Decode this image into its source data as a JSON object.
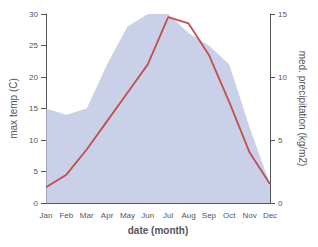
{
  "chart_data": {
    "type": "line",
    "categories": [
      "Jan",
      "Feb",
      "Mar",
      "Apr",
      "May",
      "Jun",
      "Jul",
      "Aug",
      "Sep",
      "Oct",
      "Nov",
      "Dec"
    ],
    "series": [
      {
        "type": "area",
        "axis": "y2",
        "color": "#b8c0e0",
        "values": [
          7.5,
          7.0,
          7.5,
          11.0,
          14.0,
          15.0,
          15.0,
          13.5,
          12.5,
          11.0,
          6.0,
          1.5
        ]
      },
      {
        "type": "line",
        "axis": "y",
        "color": "#c0504d",
        "values": [
          2.5,
          4.5,
          8.5,
          13.0,
          17.5,
          22.0,
          29.5,
          28.5,
          23.5,
          16.0,
          8.0,
          3.0
        ]
      }
    ],
    "xlabel": "date (month)",
    "ylabel": "max temp (C)",
    "y2label": "med. precipitation (kg/m2)",
    "ylim": [
      0,
      30
    ],
    "yticks": [
      0,
      5,
      10,
      15,
      20,
      25,
      30
    ],
    "y2lim": [
      0,
      15
    ],
    "y2ticks": [
      0,
      5,
      10,
      15
    ],
    "grid": false
  }
}
